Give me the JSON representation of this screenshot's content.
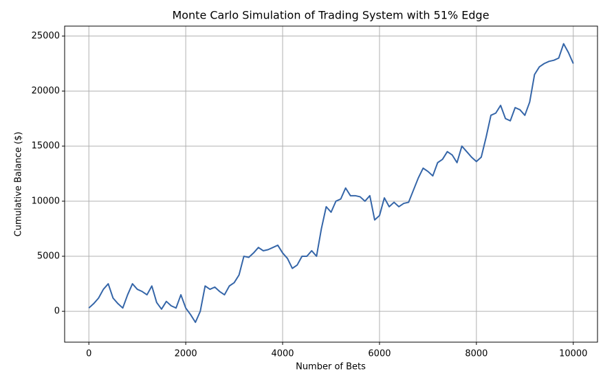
{
  "chart_data": {
    "type": "line",
    "title": "Monte Carlo Simulation of Trading System with 51% Edge",
    "x_label": "Number of Bets",
    "y_label": "Cumulative Balance ($)",
    "x": [
      0,
      100,
      200,
      300,
      400,
      500,
      600,
      700,
      800,
      900,
      1000,
      1100,
      1200,
      1300,
      1400,
      1500,
      1600,
      1700,
      1800,
      1900,
      2000,
      2100,
      2200,
      2300,
      2400,
      2500,
      2600,
      2700,
      2800,
      2900,
      3000,
      3100,
      3200,
      3300,
      3400,
      3500,
      3600,
      3700,
      3800,
      3900,
      4000,
      4100,
      4200,
      4300,
      4400,
      4500,
      4600,
      4700,
      4800,
      4900,
      5000,
      5100,
      5200,
      5300,
      5400,
      5500,
      5600,
      5700,
      5800,
      5900,
      6000,
      6100,
      6200,
      6300,
      6400,
      6500,
      6600,
      6700,
      6800,
      6900,
      7000,
      7100,
      7200,
      7300,
      7400,
      7500,
      7600,
      7700,
      7800,
      7900,
      8000,
      8100,
      8200,
      8300,
      8400,
      8500,
      8600,
      8700,
      8800,
      8900,
      9000,
      9100,
      9200,
      9300,
      9400,
      9500,
      9600,
      9700,
      9800,
      9900,
      10000
    ],
    "series": [
      {
        "name": "Cumulative Balance",
        "color": "#3465a8",
        "values": [
          300,
          700,
          1200,
          2000,
          2500,
          1200,
          700,
          300,
          1500,
          2500,
          2000,
          1800,
          1500,
          2300,
          800,
          200,
          900,
          500,
          300,
          1500,
          300,
          -300,
          -1000,
          0,
          2300,
          2000,
          2200,
          1800,
          1500,
          2300,
          2600,
          3300,
          5000,
          4900,
          5300,
          5800,
          5500,
          5600,
          5800,
          6000,
          5300,
          4800,
          3900,
          4200,
          5000,
          5000,
          5500,
          5000,
          7500,
          9500,
          9000,
          10000,
          10200,
          11200,
          10500,
          10500,
          10400,
          10000,
          10500,
          8300,
          8700,
          10300,
          9500,
          9900,
          9500,
          9800,
          9900,
          11000,
          12100,
          13000,
          12700,
          12300,
          13500,
          13800,
          14500,
          14200,
          13500,
          15000,
          14500,
          14000,
          13600,
          14000,
          15800,
          17800,
          18000,
          18700,
          17500,
          17300,
          18500,
          18300,
          17800,
          19000,
          21500,
          22200,
          22500,
          22700,
          22800,
          23000,
          24300,
          23500,
          22500
        ]
      }
    ],
    "xlim": [
      -500,
      10500
    ],
    "xticks": [
      0,
      2000,
      4000,
      6000,
      8000,
      10000
    ],
    "ylim": [
      -2800,
      25900
    ],
    "yticks": [
      0,
      5000,
      10000,
      15000,
      20000,
      25000
    ],
    "grid": true
  }
}
